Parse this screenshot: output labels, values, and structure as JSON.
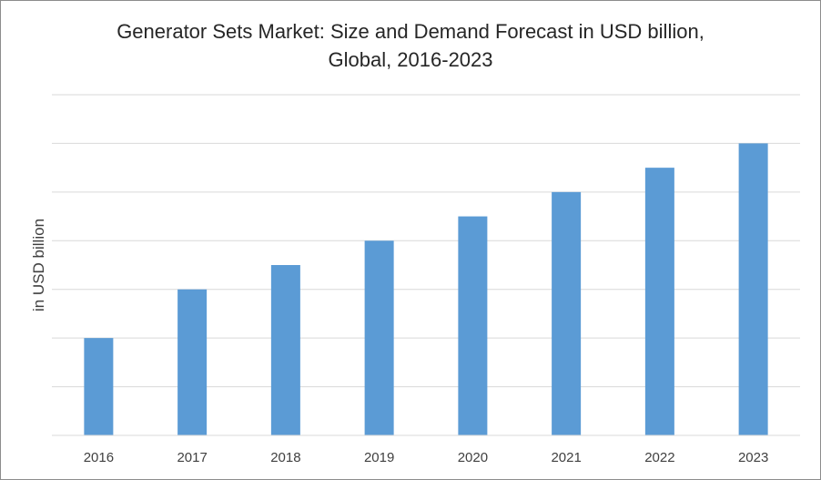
{
  "chart_data": {
    "type": "bar",
    "title_lines": [
      "Generator Sets Market: Size and Demand Forecast in USD billion,",
      "Global, 2016-2023"
    ],
    "xlabel": "",
    "ylabel": "in USD billion",
    "categories": [
      "2016",
      "2017",
      "2018",
      "2019",
      "2020",
      "2021",
      "2022",
      "2023"
    ],
    "values": [
      2,
      3,
      3.5,
      4,
      4.5,
      5,
      5.5,
      6
    ],
    "ylim": [
      0,
      7
    ],
    "y_gridlines": 7,
    "grid": true,
    "legend": "none",
    "bar_color": "#5b9bd5",
    "grid_color": "#d9d9d9"
  }
}
